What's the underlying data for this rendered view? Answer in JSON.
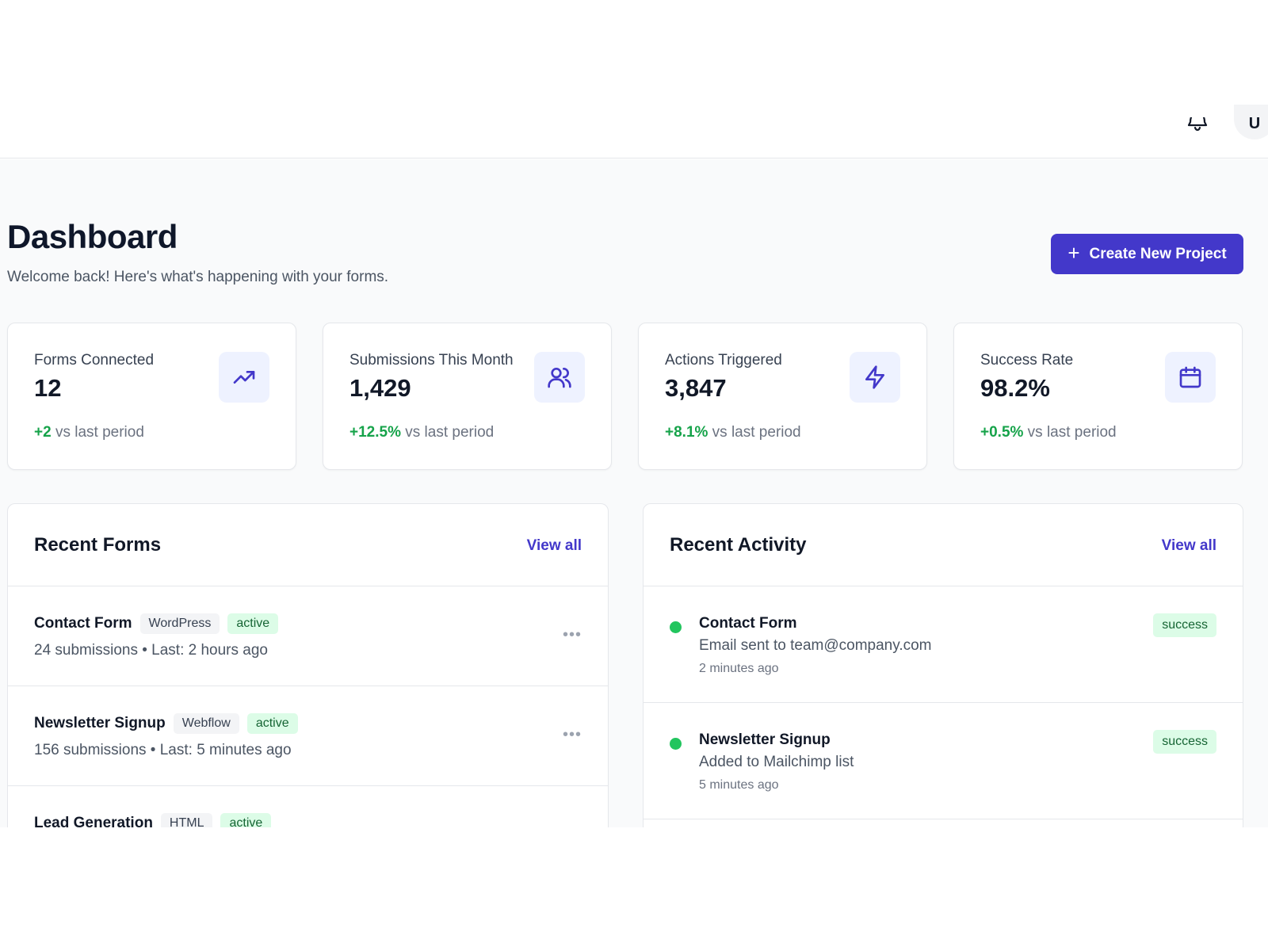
{
  "header": {
    "avatar_initial": "U"
  },
  "page": {
    "title": "Dashboard",
    "subtitle": "Welcome back! Here's what's happening with your forms.",
    "create_button_label": "Create New Project"
  },
  "stats": [
    {
      "label": "Forms Connected",
      "value": "12",
      "delta": "+2",
      "delta_suffix": " vs last period",
      "icon": "trending-up-icon"
    },
    {
      "label": "Submissions This Month",
      "value": "1,429",
      "delta": "+12.5%",
      "delta_suffix": " vs last period",
      "icon": "users-icon"
    },
    {
      "label": "Actions Triggered",
      "value": "3,847",
      "delta": "+8.1%",
      "delta_suffix": " vs last period",
      "icon": "lightning-icon"
    },
    {
      "label": "Success Rate",
      "value": "98.2%",
      "delta": "+0.5%",
      "delta_suffix": " vs last period",
      "icon": "calendar-icon"
    }
  ],
  "recent_forms": {
    "title": "Recent Forms",
    "view_all": "View all",
    "items": [
      {
        "name": "Contact Form",
        "platform": "WordPress",
        "status": "active",
        "meta": "24 submissions • Last: 2 hours ago"
      },
      {
        "name": "Newsletter Signup",
        "platform": "Webflow",
        "status": "active",
        "meta": "156 submissions • Last: 5 minutes ago"
      },
      {
        "name": "Lead Generation",
        "platform": "HTML",
        "status": "active",
        "meta": ""
      }
    ]
  },
  "recent_activity": {
    "title": "Recent Activity",
    "view_all": "View all",
    "items": [
      {
        "title": "Contact Form",
        "description": "Email sent to team@company.com",
        "time": "2 minutes ago",
        "status": "success"
      },
      {
        "title": "Newsletter Signup",
        "description": "Added to Mailchimp list",
        "time": "5 minutes ago",
        "status": "success"
      }
    ]
  },
  "colors": {
    "accent": "#4338ca",
    "success": "#16a34a",
    "success_bg": "#dcfce7"
  }
}
